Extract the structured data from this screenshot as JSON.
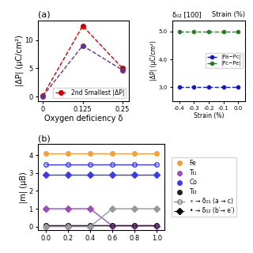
{
  "chart_data": [
    {
      "type": "line",
      "title": "(a)",
      "xlabel": "Oxygen deficiency δ",
      "ylabel": "|ΔP| (μC/cm²)",
      "x": [
        0,
        0.125,
        0.25
      ],
      "series": [
        {
          "name": "2nd Smallest |ΔP|",
          "color": "#cc0000",
          "values": [
            0.15,
            12.5,
            5.0
          ],
          "marker": "circle",
          "line_style": "dashed"
        },
        {
          "color": "#6b2f8a",
          "values": [
            0.1,
            9.0,
            4.7
          ],
          "marker": "circle",
          "line_style": "dashed"
        }
      ],
      "xlim": [
        -0.015,
        0.27
      ],
      "ylim": [
        -0.8,
        13.5
      ],
      "xticks": [
        0,
        0.125,
        0.25
      ],
      "yticks": [
        0,
        5,
        10
      ],
      "legend": "lower right"
    },
    {
      "type": "line",
      "title": "δ₀₂ [100]",
      "annotations": [
        "Strain (%)"
      ],
      "xlabel": "Strain (%)",
      "ylabel": "|ΔP| (μC/cm²)",
      "x": [
        -0.4,
        -0.3,
        -0.2,
        -0.1,
        0.0
      ],
      "series": [
        {
          "name": "|Pa−Pc|",
          "color": "#1515cc",
          "values": [
            3.0,
            3.0,
            3.0,
            3.0,
            3.0
          ],
          "marker": "circle",
          "line_style": "dashed"
        },
        {
          "name": "|Pc−Pe|",
          "color": "#2d7a2d",
          "values": [
            5.0,
            5.0,
            5.0,
            5.0,
            5.0
          ],
          "marker": "circle",
          "line_style": "dashed"
        }
      ],
      "xlim": [
        -0.45,
        0.05
      ],
      "ylim": [
        2.5,
        5.4
      ],
      "xticks": [
        -0.4,
        -0.3,
        -0.2,
        -0.1,
        0.0
      ],
      "yticks": [
        3.0,
        4.0,
        5.0
      ],
      "legend": "center right"
    },
    {
      "type": "line",
      "title": "(b)",
      "ylabel": "|m| (μB)",
      "x": [
        0.0,
        0.2,
        0.4,
        0.6,
        0.8,
        1.0
      ],
      "series": [
        {
          "color": "#f5a03a",
          "values": [
            4.1,
            4.1,
            4.1,
            4.1,
            4.1,
            4.1
          ],
          "marker": "circle",
          "line_style": "solid"
        },
        {
          "color": "#3a3aee",
          "values": [
            3.45,
            3.45,
            3.45,
            3.45,
            3.45,
            3.45
          ],
          "marker": "circle_open",
          "line_style": "solid"
        },
        {
          "color": "#3a3aee",
          "values": [
            2.88,
            2.88,
            2.88,
            2.88,
            2.88,
            2.88
          ],
          "marker": "diamond",
          "line_style": "solid"
        },
        {
          "color": "#9b4fb5",
          "values": [
            0.07,
            0.07,
            0.07,
            0.07,
            0.07,
            0.07
          ],
          "marker": "circle_open",
          "line_style": "solid"
        },
        {
          "color": "#9b4fb5",
          "values": [
            1.0,
            1.0,
            1.0,
            0.05,
            0.05,
            0.05
          ],
          "marker": "diamond",
          "line_style": "solid"
        },
        {
          "color": "#222222",
          "values": [
            0.07,
            0.07,
            0.07,
            0.07,
            0.07,
            0.07
          ],
          "marker": "circle_open",
          "line_style": "solid"
        },
        {
          "color": "#999999",
          "values": [
            0.0,
            0.0,
            0.0,
            1.0,
            1.0,
            1.0
          ],
          "marker": "diamond",
          "line_style": "solid"
        }
      ],
      "legend_entries": [
        {
          "name": "Fe",
          "color": "#f5a03a",
          "marker": "circle",
          "line_style": "none"
        },
        {
          "name": "Ti₁",
          "color": "#9b4fb5",
          "marker": "circle",
          "line_style": "none"
        },
        {
          "name": "Co",
          "color": "#3a3aee",
          "marker": "circle",
          "line_style": "none"
        },
        {
          "name": "Ti₂",
          "color": "#222222",
          "marker": "circle",
          "line_style": "none"
        },
        {
          "name": "∘ → δ₀₁ (a → c)",
          "color": "gray",
          "marker": "circle_open",
          "line_style": "solid"
        },
        {
          "name": "• → δ₀₂ (b′→ e′)",
          "color": "black",
          "marker": "diamond",
          "line_style": "dashed"
        }
      ],
      "xlim": [
        -0.07,
        1.07
      ],
      "ylim": [
        -0.2,
        4.6
      ],
      "xticks": [
        0.0,
        0.2,
        0.4,
        0.6,
        0.8,
        1.0
      ],
      "yticks": [
        0,
        1,
        2,
        3,
        4
      ],
      "legend": "outside right"
    }
  ]
}
